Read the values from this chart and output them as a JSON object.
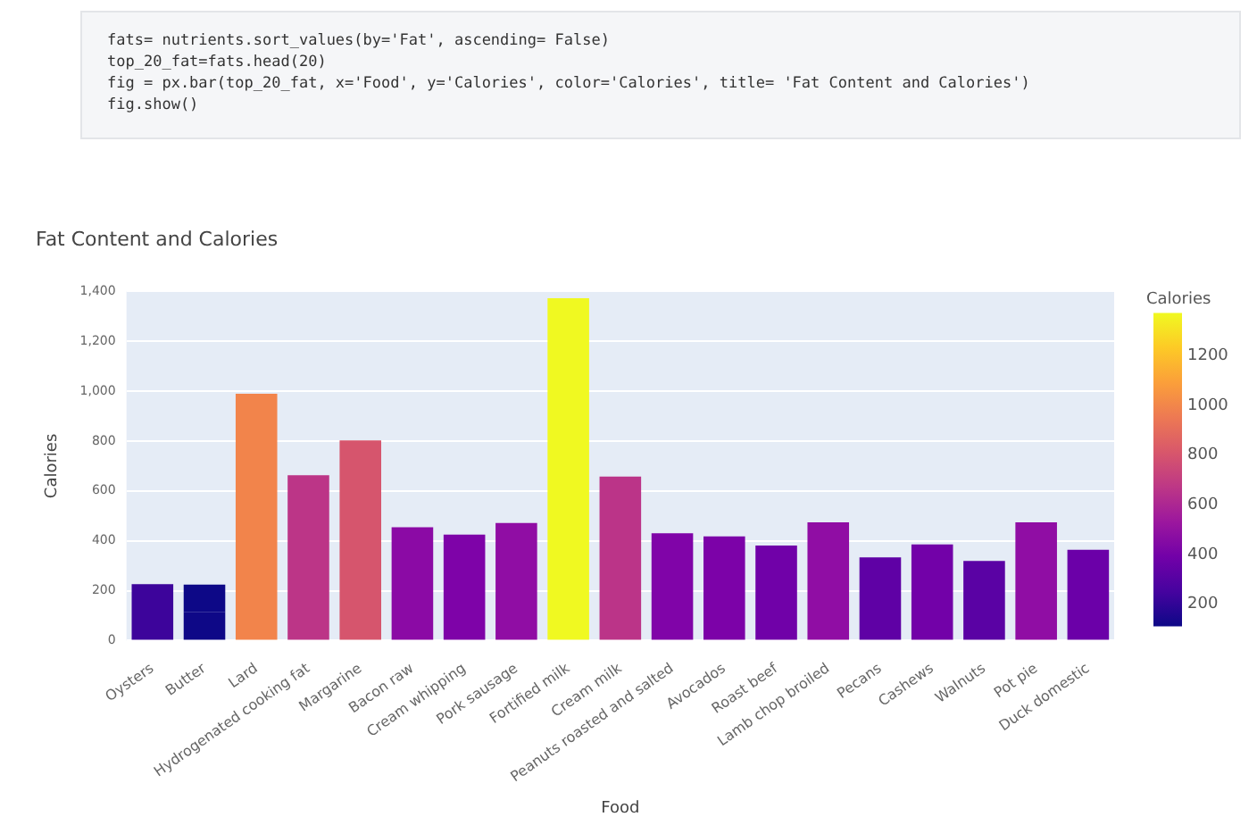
{
  "chart_data": {
    "type": "bar",
    "title": "Fat Content and Calories",
    "xlabel": "Food",
    "ylabel": "Calories",
    "clabel": "Calories",
    "annotations": [
      "fats= nutrients.sort_values(by='Fat', ascending= False)",
      "top_20_fat=fats.head(20)",
      "fig = px.bar(top_20_fat, x='Food', y='Calories', color='Calories', title= 'Fat Content and Calories')",
      "fig.show()"
    ],
    "categories": [
      "Oysters",
      "Butter",
      "Lard",
      "Hydrogenated cooking fat",
      "Margarine",
      "Bacon raw",
      "Cream whipping",
      "Pork sausage",
      "Fortified milk",
      "Cream milk",
      "Peanuts roasted and salted",
      "Avocados",
      "Roast beef",
      "Lamb chop broiled",
      "Pecans",
      "Cashews",
      "Walnuts",
      "Pot pie",
      "Duck domestic"
    ],
    "stacked": true,
    "series": [
      {
        "values": [
          226,
          115,
          990,
          663,
          803,
          455,
          425,
          472,
          1373,
          658,
          430,
          418,
          381,
          474,
          334,
          386,
          319,
          474,
          364
        ],
        "colors": [
          "#3d049b",
          "#0e0887",
          "#f2844b",
          "#bc3587",
          "#d6556d",
          "#8b0aa5",
          "#7e03a8",
          "#900da4",
          "#f0f921",
          "#bb3488",
          "#8004a8",
          "#7c02a8",
          "#7001a8",
          "#900da4",
          "#5f01a5",
          "#7201a8",
          "#5a02a4",
          "#900da4",
          "#6b00a8"
        ]
      },
      {
        "values": [
          null,
          110,
          null,
          null,
          null,
          null,
          null,
          null,
          null,
          null,
          null,
          null,
          null,
          null,
          null,
          null,
          null,
          null,
          null
        ],
        "colors": [
          null,
          "#0d0887",
          null,
          null,
          null,
          null,
          null,
          null,
          null,
          null,
          null,
          null,
          null,
          null,
          null,
          null,
          null,
          null,
          null
        ]
      }
    ],
    "ylim": [
      0,
      1400
    ],
    "yticks": [
      0,
      200,
      400,
      600,
      800,
      {
        "value": 1000,
        "label": "1,000"
      },
      {
        "value": 1200,
        "label": "1,200"
      },
      {
        "value": 1400,
        "label": "1,400"
      }
    ],
    "grid": "y",
    "legend": false,
    "clim": [
      110,
      1373
    ],
    "cticks": [
      200,
      400,
      600,
      800,
      1000,
      1200
    ]
  }
}
